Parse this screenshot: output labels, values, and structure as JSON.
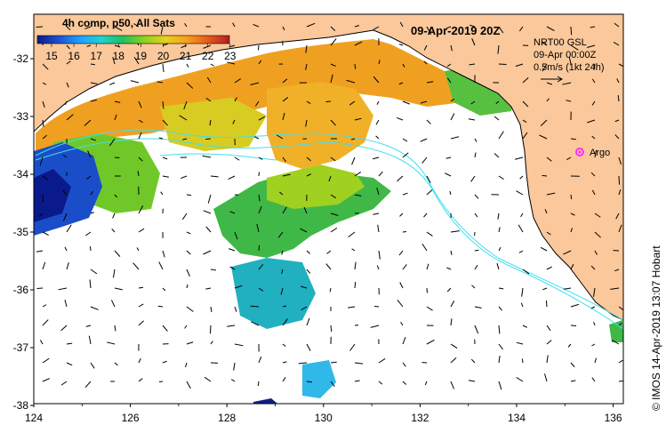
{
  "title": "09-Apr-2019 20Z",
  "colorbar": {
    "label": "4h comp, p50, All Sats",
    "ticks": [
      "15",
      "16",
      "17",
      "18",
      "19",
      "20",
      "21",
      "22",
      "23"
    ],
    "stops": [
      "#0a1a8c",
      "#1e50d2",
      "#1ea0ff",
      "#20d2d2",
      "#20c060",
      "#8cd21e",
      "#e6d21e",
      "#f5a01e",
      "#e65a1e",
      "#b41e1e"
    ]
  },
  "info": {
    "line1": "NRT00 GSL",
    "line2": "09-Apr 00:00Z",
    "line3": "0.5m/s (1kt 24h)"
  },
  "argo": {
    "label": "Argo",
    "color": "#ff30ff"
  },
  "credit": "© IMOS 14-Apr-2019 13:07 Hobart",
  "x_ticks": [
    "124",
    "126",
    "128",
    "130",
    "132",
    "134",
    "136"
  ],
  "y_ticks": [
    "-32",
    "-33",
    "-34",
    "-35",
    "-36",
    "-37",
    "-38"
  ],
  "colors": {
    "land": "#fac89b",
    "ocean": "#ffffff",
    "contour": "#40e0f0",
    "frame": "#000000"
  }
}
